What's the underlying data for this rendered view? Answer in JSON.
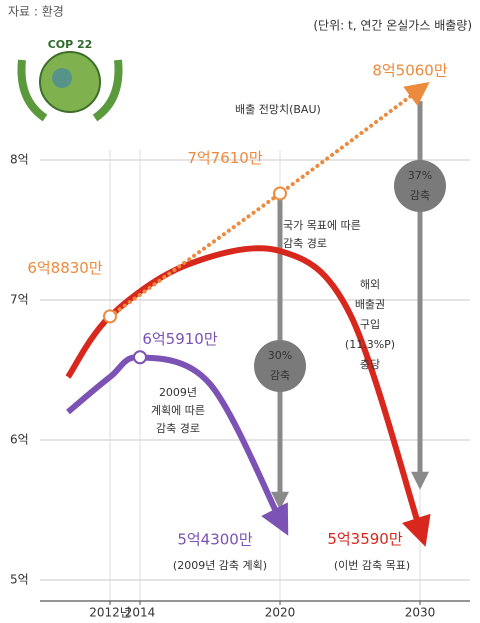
{
  "chart_data": {
    "type": "line",
    "source": "자료 : 환경",
    "subtitle": "(단위: t, 연간 온실가스 배출량)",
    "logo_text": "COP 22",
    "xlim": [
      2007,
      2034
    ],
    "xticks": [
      {
        "value": 2012,
        "label": "2012년"
      },
      2014,
      2020,
      2030
    ],
    "ylim": [
      4.85,
      8.65
    ],
    "yticks": [
      {
        "value": 5,
        "label": "5억"
      },
      {
        "value": 6,
        "label": "6억"
      },
      {
        "value": 7,
        "label": "7억"
      },
      {
        "value": 8,
        "label": "8억"
      }
    ],
    "grid": true,
    "series": [
      {
        "color": "#ec8a3e",
        "style": "dotted",
        "x": [
          2012,
          2020,
          2030
        ],
        "values": [
          6.883,
          7.761,
          8.506
        ],
        "value_labels": [
          "6억8830만",
          "7억7610만",
          "8억5060만"
        ]
      },
      {
        "color": "#d8281e",
        "style": "solid",
        "x": [
          2009,
          2012,
          2016,
          2020,
          2025,
          2030
        ],
        "values": [
          6.45,
          6.883,
          7.25,
          7.35,
          6.9,
          5.359
        ],
        "value_labels": [
          null,
          null,
          null,
          null,
          null,
          "5억3590만"
        ]
      },
      {
        "color": "#7d52b5",
        "style": "solid",
        "x": [
          2009,
          2012,
          2014,
          2017,
          2020
        ],
        "values": [
          6.2,
          6.45,
          6.591,
          6.4,
          5.43
        ],
        "value_labels": [
          null,
          null,
          "6억5910만",
          null,
          "5억4300만"
        ]
      }
    ],
    "annotations": [
      [
        "배출 전망치(BAU)"
      ],
      [
        "국가 목표에 따른",
        "감축 경로"
      ],
      [
        "해외",
        "배출권",
        "구입",
        "(11.3%P)",
        "충당"
      ],
      [
        "2009년",
        "계획에 따른",
        "감축 경로"
      ],
      [
        "(2009년 감축 계획)"
      ],
      [
        "(이번 감축 목표)"
      ],
      [
        "30%",
        "감축"
      ],
      [
        "37%",
        "감축"
      ]
    ]
  }
}
